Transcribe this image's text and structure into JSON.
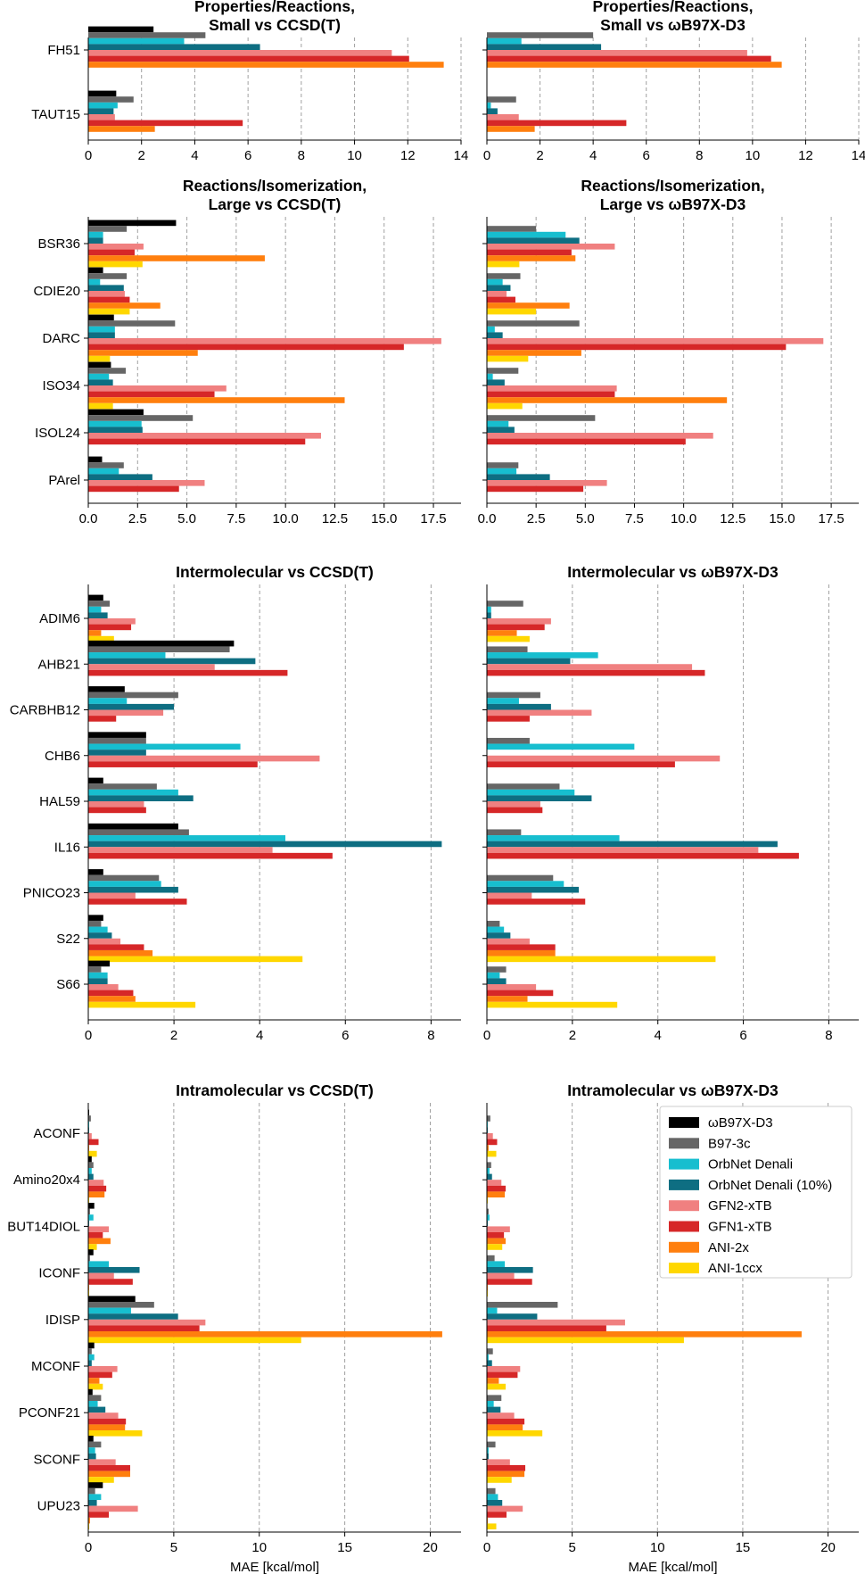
{
  "colors": {
    "ωB97X-D3": "#000000",
    "B97-3c": "#666666",
    "OrbNet Denali": "#17becf",
    "OrbNet Denali (10%)": "#0e6e82",
    "GFN2-xTB": "#f08080",
    "GFN1-xTB": "#d62728",
    "ANI-2x": "#ff7f0e",
    "ANI-1ccx": "#ffd700"
  },
  "legend": {
    "placement": "top-right of last panel",
    "entries": [
      "ωB97X-D3",
      "B97-3c",
      "OrbNet Denali",
      "OrbNet Denali (10%)",
      "GFN2-xTB",
      "GFN1-xTB",
      "ANI-2x",
      "ANI-1ccx"
    ]
  },
  "chart_data": [
    {
      "type": "bar",
      "orientation": "horizontal",
      "title": "Properties/Reactions,\nSmall vs CCSD(T)",
      "xlabel": "",
      "xlim": [
        0,
        14
      ],
      "xticks": [
        0,
        2,
        4,
        6,
        8,
        10,
        12,
        14
      ],
      "categories": [
        "FH51",
        "TAUT15"
      ],
      "series": [
        {
          "name": "ωB97X-D3",
          "values": [
            2.45,
            1.05
          ]
        },
        {
          "name": "B97-3c",
          "values": [
            4.4,
            1.7
          ]
        },
        {
          "name": "OrbNet Denali",
          "values": [
            3.6,
            1.1
          ]
        },
        {
          "name": "OrbNet Denali (10%)",
          "values": [
            6.45,
            0.95
          ]
        },
        {
          "name": "GFN2-xTB",
          "values": [
            11.4,
            1.0
          ]
        },
        {
          "name": "GFN1-xTB",
          "values": [
            12.05,
            5.8
          ]
        },
        {
          "name": "ANI-2x",
          "values": [
            13.35,
            2.5
          ]
        },
        {
          "name": "ANI-1ccx",
          "values": [
            null,
            null
          ]
        }
      ]
    },
    {
      "type": "bar",
      "orientation": "horizontal",
      "title": "Properties/Reactions,\nSmall vs ωB97X-D3",
      "xlabel": "",
      "xlim": [
        0,
        14
      ],
      "xticks": [
        0,
        2,
        4,
        6,
        8,
        10,
        12,
        14
      ],
      "categories": [
        "FH51",
        "TAUT15"
      ],
      "series": [
        {
          "name": "ωB97X-D3",
          "values": [
            null,
            null
          ]
        },
        {
          "name": "B97-3c",
          "values": [
            4.0,
            1.1
          ]
        },
        {
          "name": "OrbNet Denali",
          "values": [
            1.3,
            0.15
          ]
        },
        {
          "name": "OrbNet Denali (10%)",
          "values": [
            4.3,
            0.4
          ]
        },
        {
          "name": "GFN2-xTB",
          "values": [
            9.8,
            1.2
          ]
        },
        {
          "name": "GFN1-xTB",
          "values": [
            10.7,
            5.25
          ]
        },
        {
          "name": "ANI-2x",
          "values": [
            11.1,
            1.8
          ]
        },
        {
          "name": "ANI-1ccx",
          "values": [
            null,
            null
          ]
        }
      ]
    },
    {
      "type": "bar",
      "orientation": "horizontal",
      "title": "Reactions/Isomerization,\nLarge vs CCSD(T)",
      "xlabel": "",
      "xlim": [
        0,
        18.9
      ],
      "xticks": [
        0.0,
        2.5,
        5.0,
        7.5,
        10.0,
        12.5,
        15.0,
        17.5
      ],
      "categories": [
        "BSR36",
        "CDIE20",
        "DARC",
        "ISO34",
        "ISOL24",
        "PArel"
      ],
      "series": [
        {
          "name": "ωB97X-D3",
          "values": [
            4.45,
            0.75,
            1.3,
            1.15,
            2.8,
            0.7
          ]
        },
        {
          "name": "B97-3c",
          "values": [
            1.95,
            1.95,
            4.4,
            1.9,
            5.3,
            1.8
          ]
        },
        {
          "name": "OrbNet Denali",
          "values": [
            0.75,
            0.6,
            1.35,
            1.05,
            2.7,
            1.55
          ]
        },
        {
          "name": "OrbNet Denali (10%)",
          "values": [
            0.75,
            1.8,
            1.35,
            1.25,
            2.75,
            3.25
          ]
        },
        {
          "name": "GFN2-xTB",
          "values": [
            2.8,
            1.85,
            17.9,
            7.0,
            11.8,
            5.9
          ]
        },
        {
          "name": "GFN1-xTB",
          "values": [
            2.35,
            2.1,
            16.0,
            6.4,
            11.0,
            4.6
          ]
        },
        {
          "name": "ANI-2x",
          "values": [
            8.95,
            3.65,
            5.55,
            13.0,
            null,
            null
          ]
        },
        {
          "name": "ANI-1ccx",
          "values": [
            2.75,
            2.1,
            1.1,
            1.25,
            null,
            null
          ]
        }
      ]
    },
    {
      "type": "bar",
      "orientation": "horizontal",
      "title": "Reactions/Isomerization,\nLarge vs ωB97X-D3",
      "xlabel": "",
      "xlim": [
        0,
        18.9
      ],
      "xticks": [
        0.0,
        2.5,
        5.0,
        7.5,
        10.0,
        12.5,
        15.0,
        17.5
      ],
      "categories": [
        "BSR36",
        "CDIE20",
        "DARC",
        "ISO34",
        "ISOL24",
        "PArel"
      ],
      "series": [
        {
          "name": "ωB97X-D3",
          "values": [
            null,
            null,
            null,
            null,
            null,
            null
          ]
        },
        {
          "name": "B97-3c",
          "values": [
            2.5,
            1.7,
            4.7,
            1.6,
            5.5,
            1.6
          ]
        },
        {
          "name": "OrbNet Denali",
          "values": [
            4.0,
            0.8,
            0.4,
            0.3,
            1.1,
            1.5
          ]
        },
        {
          "name": "OrbNet Denali (10%)",
          "values": [
            4.7,
            1.2,
            0.8,
            0.9,
            1.4,
            3.2
          ]
        },
        {
          "name": "GFN2-xTB",
          "values": [
            6.5,
            1.0,
            17.1,
            6.6,
            11.5,
            6.1
          ]
        },
        {
          "name": "GFN1-xTB",
          "values": [
            4.3,
            1.45,
            15.2,
            6.5,
            10.1,
            4.9
          ]
        },
        {
          "name": "ANI-2x",
          "values": [
            4.5,
            4.2,
            4.8,
            12.2,
            null,
            null
          ]
        },
        {
          "name": "ANI-1ccx",
          "values": [
            1.65,
            2.5,
            2.1,
            1.8,
            null,
            null
          ]
        }
      ]
    },
    {
      "type": "bar",
      "orientation": "horizontal",
      "title": "Intermolecular vs CCSD(T)",
      "xlabel": "",
      "xlim": [
        0,
        8.7
      ],
      "xticks": [
        0,
        2,
        4,
        6,
        8
      ],
      "categories": [
        "ADIM6",
        "AHB21",
        "CARBHB12",
        "CHB6",
        "HAL59",
        "IL16",
        "PNICO23",
        "S22",
        "S66"
      ],
      "series": [
        {
          "name": "ωB97X-D3",
          "values": [
            0.35,
            3.4,
            0.85,
            1.35,
            0.35,
            2.1,
            0.35,
            0.35,
            0.5
          ]
        },
        {
          "name": "B97-3c",
          "values": [
            0.5,
            3.3,
            2.1,
            1.35,
            1.6,
            2.35,
            1.65,
            0.3,
            0.3
          ]
        },
        {
          "name": "OrbNet Denali",
          "values": [
            0.3,
            1.8,
            0.9,
            3.55,
            2.1,
            4.6,
            1.7,
            0.45,
            0.45
          ]
        },
        {
          "name": "OrbNet Denali (10%)",
          "values": [
            0.45,
            3.9,
            2.0,
            1.35,
            2.45,
            8.25,
            2.1,
            0.55,
            0.45
          ]
        },
        {
          "name": "GFN2-xTB",
          "values": [
            1.1,
            2.95,
            1.75,
            5.4,
            1.3,
            4.3,
            1.1,
            0.75,
            0.7
          ]
        },
        {
          "name": "GFN1-xTB",
          "values": [
            1.0,
            4.65,
            0.65,
            3.95,
            1.35,
            5.7,
            2.3,
            1.3,
            1.05
          ]
        },
        {
          "name": "ANI-2x",
          "values": [
            0.3,
            null,
            null,
            null,
            null,
            null,
            null,
            1.5,
            1.1
          ]
        },
        {
          "name": "ANI-1ccx",
          "values": [
            0.6,
            null,
            null,
            null,
            null,
            null,
            null,
            5.0,
            2.5
          ]
        }
      ]
    },
    {
      "type": "bar",
      "orientation": "horizontal",
      "title": "Intermolecular vs ωB97X-D3",
      "xlabel": "",
      "xlim": [
        0,
        8.7
      ],
      "xticks": [
        0,
        2,
        4,
        6,
        8
      ],
      "categories": [
        "ADIM6",
        "AHB21",
        "CARBHB12",
        "CHB6",
        "HAL59",
        "IL16",
        "PNICO23",
        "S22",
        "S66"
      ],
      "series": [
        {
          "name": "ωB97X-D3",
          "values": [
            null,
            null,
            null,
            null,
            null,
            null,
            null,
            null,
            null
          ]
        },
        {
          "name": "B97-3c",
          "values": [
            0.85,
            0.95,
            1.25,
            1.0,
            1.7,
            0.8,
            1.55,
            0.3,
            0.45
          ]
        },
        {
          "name": "OrbNet Denali",
          "values": [
            0.1,
            2.6,
            0.75,
            3.45,
            2.05,
            3.1,
            1.8,
            0.4,
            0.3
          ]
        },
        {
          "name": "OrbNet Denali (10%)",
          "values": [
            0.1,
            1.95,
            1.5,
            0.0,
            2.45,
            6.8,
            2.15,
            0.55,
            0.45
          ]
        },
        {
          "name": "GFN2-xTB",
          "values": [
            1.5,
            4.8,
            2.45,
            5.45,
            1.25,
            6.35,
            1.05,
            1.0,
            1.15
          ]
        },
        {
          "name": "GFN1-xTB",
          "values": [
            1.35,
            5.1,
            1.0,
            4.4,
            1.3,
            7.3,
            2.3,
            1.6,
            1.55
          ]
        },
        {
          "name": "ANI-2x",
          "values": [
            0.7,
            null,
            null,
            null,
            null,
            null,
            null,
            1.6,
            0.95
          ]
        },
        {
          "name": "ANI-1ccx",
          "values": [
            1.0,
            null,
            null,
            null,
            null,
            null,
            null,
            5.35,
            3.05
          ]
        }
      ]
    },
    {
      "type": "bar",
      "orientation": "horizontal",
      "title": "Intramolecular vs CCSD(T)",
      "xlabel": "MAE [kcal/mol]",
      "xlim": [
        0,
        21.8
      ],
      "xticks": [
        0,
        5,
        10,
        15,
        20
      ],
      "categories": [
        "ACONF",
        "Amino20x4",
        "BUT14DIOL",
        "ICONF",
        "IDISP",
        "MCONF",
        "PCONF21",
        "SCONF",
        "UPU23"
      ],
      "series": [
        {
          "name": "ωB97X-D3",
          "values": [
            0.05,
            0.2,
            0.35,
            0.3,
            2.75,
            0.35,
            0.25,
            0.3,
            0.85
          ]
        },
        {
          "name": "B97-3c",
          "values": [
            0.15,
            0.3,
            0.1,
            0.1,
            3.85,
            0.2,
            0.75,
            0.75,
            0.4
          ]
        },
        {
          "name": "OrbNet Denali",
          "values": [
            0.05,
            0.2,
            0.3,
            1.2,
            2.5,
            0.35,
            0.55,
            0.4,
            0.75
          ]
        },
        {
          "name": "OrbNet Denali (10%)",
          "values": [
            0.05,
            0.3,
            0.05,
            3.0,
            5.25,
            0.2,
            1.0,
            0.45,
            0.5
          ]
        },
        {
          "name": "GFN2-xTB",
          "values": [
            0.2,
            0.9,
            1.2,
            1.5,
            6.85,
            1.7,
            1.75,
            1.6,
            2.9
          ]
        },
        {
          "name": "GFN1-xTB",
          "values": [
            0.6,
            1.05,
            0.85,
            2.6,
            6.5,
            1.4,
            2.2,
            2.45,
            1.2
          ]
        },
        {
          "name": "ANI-2x",
          "values": [
            0.05,
            0.95,
            1.3,
            0.05,
            20.7,
            0.65,
            2.15,
            2.45,
            0.1
          ]
        },
        {
          "name": "ANI-1ccx",
          "values": [
            0.5,
            0.05,
            0.5,
            0.05,
            12.45,
            0.85,
            3.15,
            1.5,
            0.05
          ]
        }
      ]
    },
    {
      "type": "bar",
      "orientation": "horizontal",
      "title": "Intramolecular vs ωB97X-D3",
      "xlabel": "MAE [kcal/mol]",
      "xlim": [
        0,
        21.8
      ],
      "xticks": [
        0,
        5,
        10,
        15,
        20
      ],
      "categories": [
        "ACONF",
        "Amino20x4",
        "BUT14DIOL",
        "ICONF",
        "IDISP",
        "MCONF",
        "PCONF21",
        "SCONF",
        "UPU23"
      ],
      "series": [
        {
          "name": "ωB97X-D3",
          "values": [
            null,
            null,
            null,
            null,
            null,
            null,
            null,
            null,
            null
          ]
        },
        {
          "name": "B97-3c",
          "values": [
            0.2,
            0.25,
            0.1,
            0.45,
            4.15,
            0.35,
            0.85,
            0.5,
            0.5
          ]
        },
        {
          "name": "OrbNet Denali",
          "values": [
            0.05,
            0.15,
            0.15,
            1.05,
            0.6,
            0.1,
            0.4,
            0.1,
            0.65
          ]
        },
        {
          "name": "OrbNet Denali (10%)",
          "values": [
            0.05,
            0.3,
            0.05,
            2.7,
            2.95,
            0.3,
            0.8,
            0.1,
            0.9
          ]
        },
        {
          "name": "GFN2-xTB",
          "values": [
            0.35,
            0.85,
            1.35,
            1.6,
            8.1,
            1.95,
            1.6,
            1.35,
            2.1
          ]
        },
        {
          "name": "GFN1-xTB",
          "values": [
            0.6,
            1.1,
            1.0,
            2.65,
            7.0,
            1.8,
            2.2,
            2.25,
            1.15
          ]
        },
        {
          "name": "ANI-2x",
          "values": [
            0.1,
            1.05,
            1.1,
            0.05,
            18.45,
            0.7,
            2.1,
            2.2,
            0.05
          ]
        },
        {
          "name": "ANI-1ccx",
          "values": [
            0.55,
            0.05,
            0.9,
            0.05,
            11.55,
            1.1,
            3.25,
            1.45,
            0.55
          ]
        }
      ]
    }
  ]
}
